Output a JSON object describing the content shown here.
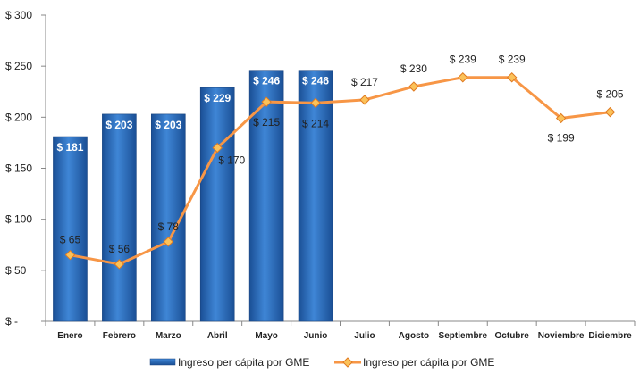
{
  "chart_data": {
    "type": "bar",
    "categories": [
      "Enero",
      "Febrero",
      "Marzo",
      "Abril",
      "Mayo",
      "Junio",
      "Julio",
      "Agosto",
      "Septiembre",
      "Octubre",
      "Noviembre",
      "Diciembre"
    ],
    "ylim": [
      0,
      300
    ],
    "yticks": [
      0,
      50,
      100,
      150,
      200,
      250,
      300
    ],
    "ytick_labels": [
      "$ -",
      "$ 50",
      "$ 100",
      "$ 150",
      "$ 200",
      "$ 250",
      "$ 300"
    ],
    "grid": false,
    "legend_position": "bottom",
    "series": [
      {
        "name": "Ingreso per cápita por GME",
        "type": "bar",
        "color": "#1f5fb0",
        "values": [
          181,
          203,
          203,
          229,
          246,
          246,
          null,
          null,
          null,
          null,
          null,
          null
        ],
        "labels": [
          "$ 181",
          "$ 203",
          "$ 203",
          "$ 229",
          "$ 246",
          "$ 246",
          "",
          "",
          "",
          "",
          "",
          ""
        ]
      },
      {
        "name": "Ingreso per cápita por GME",
        "type": "line",
        "color": "#f79646",
        "marker_color": "#fbc25a",
        "values": [
          65,
          56,
          78,
          170,
          215,
          214,
          217,
          230,
          239,
          239,
          199,
          205
        ],
        "labels": [
          "$ 65",
          "$ 56",
          "$ 78",
          "$ 170",
          "$ 215",
          "$ 214",
          "$ 217",
          "$ 230",
          "$ 239",
          "$ 239",
          "$ 199",
          "$ 205"
        ]
      }
    ]
  }
}
